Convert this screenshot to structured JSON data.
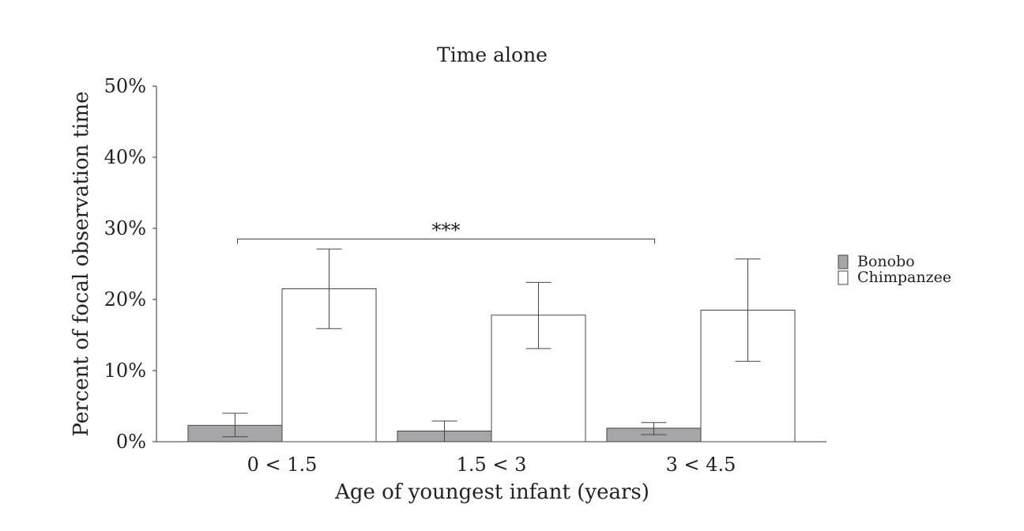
{
  "chart_data": {
    "type": "bar",
    "title": "Time alone",
    "xlabel": "Age of youngest infant (years)",
    "ylabel": "Percent of focal observation time",
    "categories": [
      "0 < 1.5",
      "1.5 < 3",
      "3 < 4.5"
    ],
    "ylim": [
      0,
      50
    ],
    "yticks": [
      0,
      10,
      20,
      30,
      40,
      50
    ],
    "ytick_labels": [
      "0%",
      "10%",
      "20%",
      "30%",
      "40%",
      "50%"
    ],
    "series": [
      {
        "name": "Bonobo",
        "color": "#a6a6a8",
        "values": [
          2.3,
          1.5,
          1.9
        ],
        "error_low": [
          0.7,
          0.0,
          1.0
        ],
        "error_high": [
          4.0,
          2.9,
          2.7
        ]
      },
      {
        "name": "Chimpanzee",
        "color": "#ffffff",
        "values": [
          21.5,
          17.8,
          18.5
        ],
        "error_low": [
          15.9,
          13.1,
          11.3
        ],
        "error_high": [
          27.1,
          22.4,
          25.7
        ]
      }
    ],
    "grid": false,
    "legend_position": "right",
    "annotations": [
      {
        "text": "***",
        "type": "significance-bracket",
        "from_category": 0,
        "to_category": 2,
        "y": 28.5
      }
    ]
  }
}
